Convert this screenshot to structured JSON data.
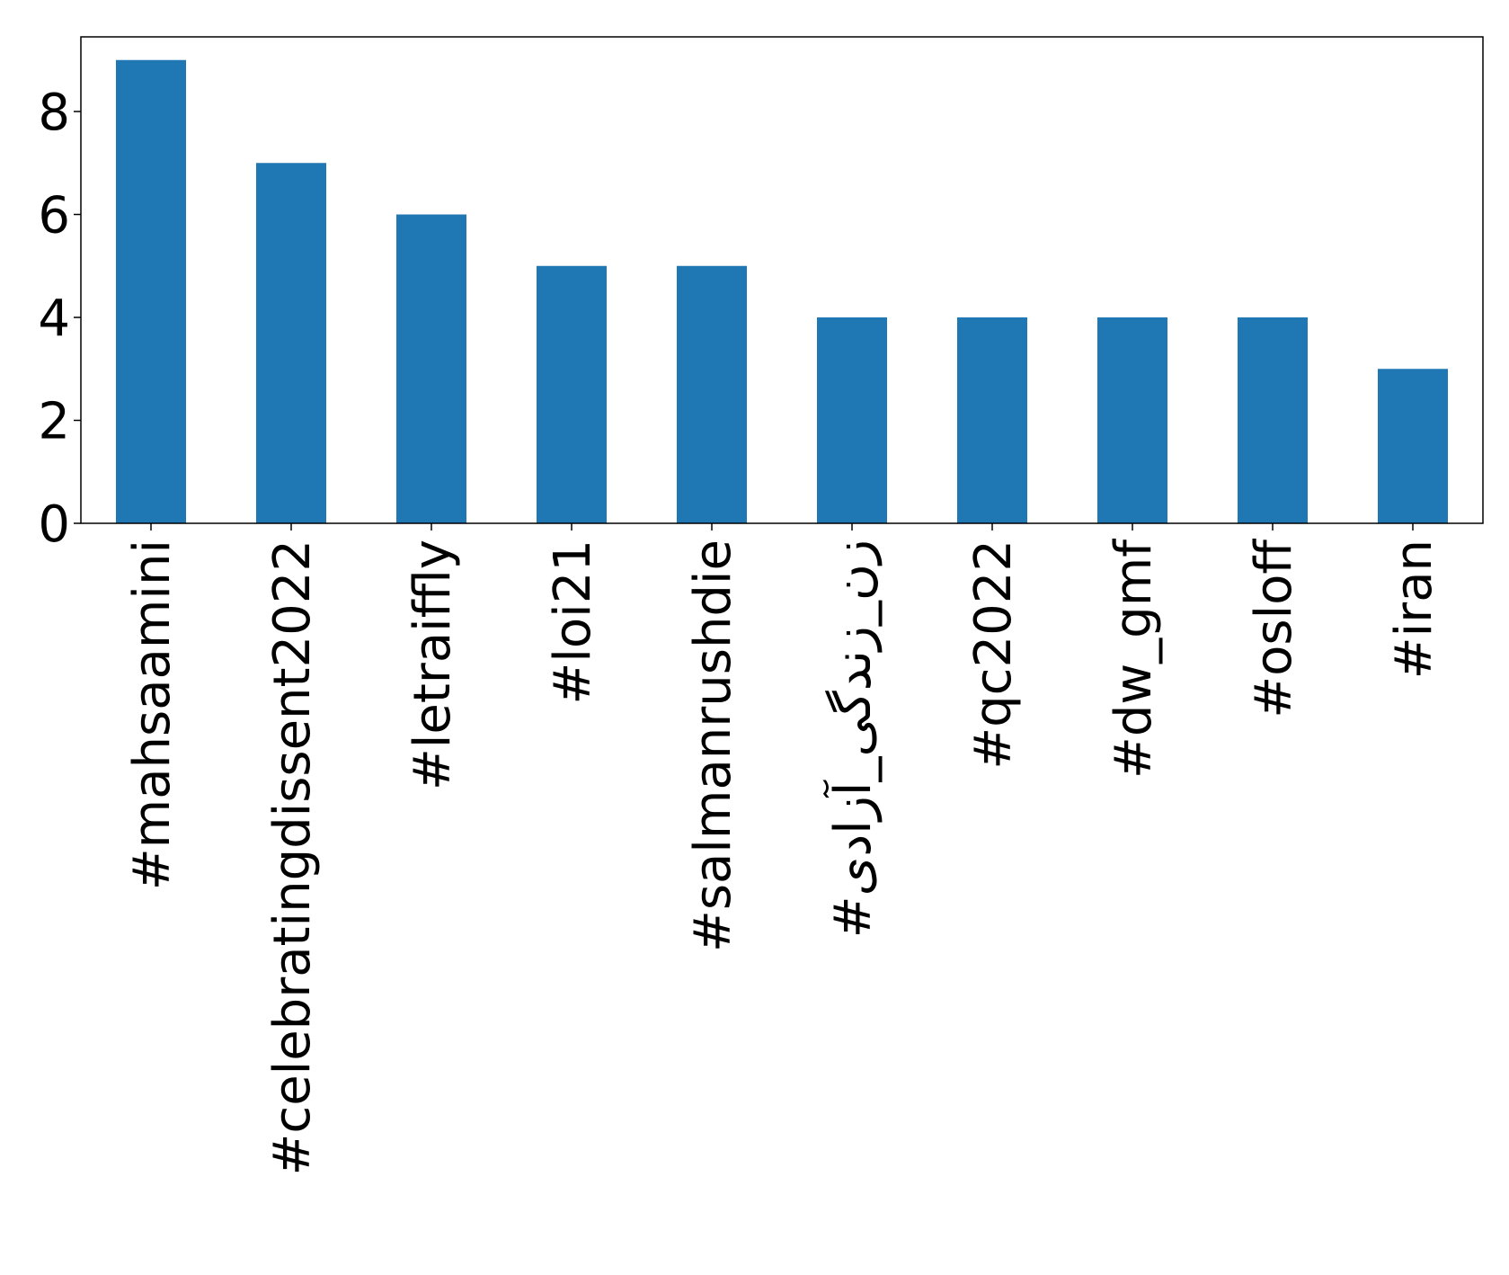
{
  "chart_data": {
    "type": "bar",
    "categories": [
      "#mahsaamini",
      "#celebratingdissent2022",
      "#letraiffly",
      "#loi21",
      "#salmanrushdie",
      "#زن_زندگی_آزادی",
      "#qc2022",
      "#dw_gmf",
      "#osloff",
      "#iran"
    ],
    "values": [
      9,
      7,
      6,
      5,
      5,
      4,
      4,
      4,
      4,
      3
    ],
    "ylim": [
      0,
      9.45
    ],
    "yticks": [
      "0",
      "2",
      "4",
      "6",
      "8"
    ],
    "bar_color": "#1f77b4",
    "grid": false,
    "legend": "none"
  }
}
